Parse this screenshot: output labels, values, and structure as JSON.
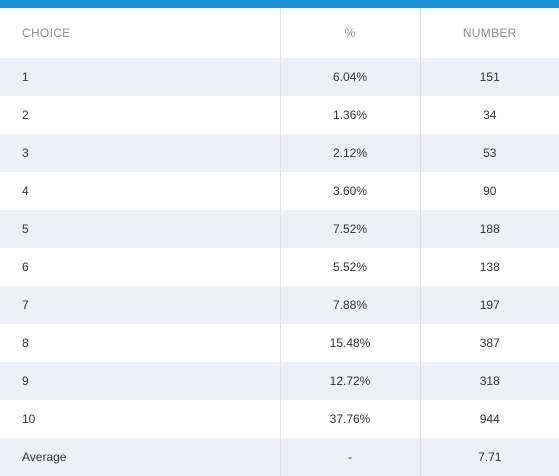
{
  "colors": {
    "accent_bar": "#1a8fd6",
    "stripe": "#edf1f5",
    "header_text": "#8a8f94"
  },
  "table": {
    "headers": {
      "choice": "CHOICE",
      "percent": "%",
      "number": "NUMBER"
    },
    "rows": [
      {
        "choice": "1",
        "percent": "6.04%",
        "number": "151"
      },
      {
        "choice": "2",
        "percent": "1.36%",
        "number": "34"
      },
      {
        "choice": "3",
        "percent": "2.12%",
        "number": "53"
      },
      {
        "choice": "4",
        "percent": "3.60%",
        "number": "90"
      },
      {
        "choice": "5",
        "percent": "7.52%",
        "number": "188"
      },
      {
        "choice": "6",
        "percent": "5.52%",
        "number": "138"
      },
      {
        "choice": "7",
        "percent": "7.88%",
        "number": "197"
      },
      {
        "choice": "8",
        "percent": "15.48%",
        "number": "387"
      },
      {
        "choice": "9",
        "percent": "12.72%",
        "number": "318"
      },
      {
        "choice": "10",
        "percent": "37.76%",
        "number": "944"
      },
      {
        "choice": "Average",
        "percent": "-",
        "number": "7.71"
      }
    ]
  }
}
